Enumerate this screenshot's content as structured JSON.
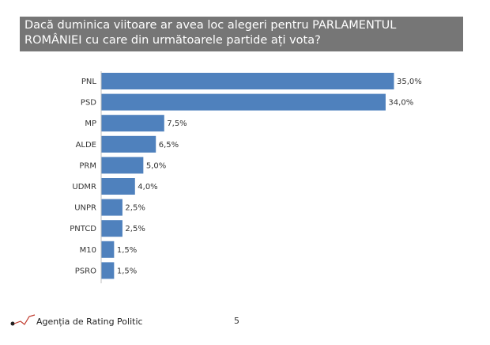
{
  "title": {
    "line1": "Dacă duminica viitoare ar avea loc alegeri pentru PARLAMENTUL",
    "line2": "ROMÂNIEI cu care din următoarele partide ați vota?"
  },
  "chart_data": {
    "type": "bar",
    "orientation": "horizontal",
    "categories": [
      "PNL",
      "PSD",
      "MP",
      "ALDE",
      "PRM",
      "UDMR",
      "UNPR",
      "PNTCD",
      "M10",
      "PSRO"
    ],
    "values": [
      35.0,
      34.0,
      7.5,
      6.5,
      5.0,
      4.0,
      2.5,
      2.5,
      1.5,
      1.5
    ],
    "value_labels": [
      "35,0%",
      "34,0%",
      "7,5%",
      "6,5%",
      "5,0%",
      "4,0%",
      "2,5%",
      "2,5%",
      "1,5%",
      "1,5%"
    ],
    "xlim": [
      0,
      35
    ],
    "bar_color": "#4f81bd",
    "grid": false,
    "legend": "none"
  },
  "footer": {
    "brand": "Agenția de Rating Politic",
    "page_number": "5",
    "logo_color": "#c0392b"
  }
}
